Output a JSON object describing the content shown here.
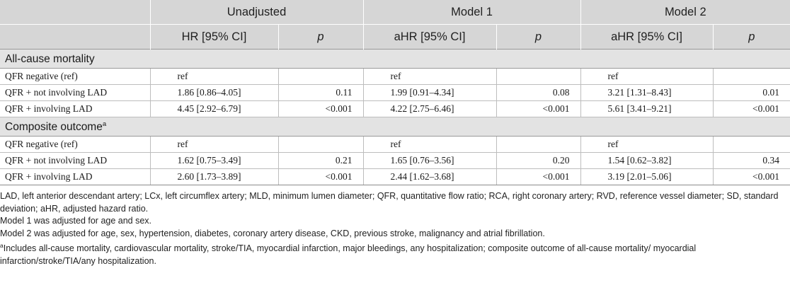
{
  "table": {
    "groups": [
      "Unadjusted",
      "Model 1",
      "Model 2"
    ],
    "subheaders": {
      "unadjusted_ci": "HR [95% CI]",
      "model1_ci": "aHR [95% CI]",
      "model2_ci": "aHR [95% CI]",
      "p": "p"
    },
    "sections": [
      {
        "title": "All-cause mortality",
        "superscript": "",
        "rows": [
          {
            "label": "QFR negative (ref)",
            "u_ci": "ref",
            "u_p": "",
            "m1_ci": "ref",
            "m1_p": "",
            "m2_ci": "ref",
            "m2_p": ""
          },
          {
            "label": "QFR + not involving LAD",
            "u_ci": "1.86 [0.86–4.05]",
            "u_p": "0.11",
            "m1_ci": "1.99 [0.91–4.34]",
            "m1_p": "0.08",
            "m2_ci": "3.21 [1.31–8.43]",
            "m2_p": "0.01"
          },
          {
            "label": "QFR + involving LAD",
            "u_ci": "4.45 [2.92–6.79]",
            "u_p": "<0.001",
            "m1_ci": "4.22 [2.75–6.46]",
            "m1_p": "<0.001",
            "m2_ci": "5.61 [3.41–9.21]",
            "m2_p": "<0.001"
          }
        ]
      },
      {
        "title": "Composite outcome",
        "superscript": "a",
        "rows": [
          {
            "label": "QFR negative (ref)",
            "u_ci": "ref",
            "u_p": "",
            "m1_ci": "ref",
            "m1_p": "",
            "m2_ci": "ref",
            "m2_p": ""
          },
          {
            "label": "QFR + not involving LAD",
            "u_ci": "1.62 [0.75–3.49]",
            "u_p": "0.21",
            "m1_ci": "1.65 [0.76–3.56]",
            "m1_p": "0.20",
            "m2_ci": "1.54 [0.62–3.82]",
            "m2_p": "0.34"
          },
          {
            "label": "QFR + involving LAD",
            "u_ci": "2.60 [1.73–3.89]",
            "u_p": "<0.001",
            "m1_ci": "2.44 [1.62–3.68]",
            "m1_p": "<0.001",
            "m2_ci": "3.19 [2.01–5.06]",
            "m2_p": "<0.001"
          }
        ]
      }
    ]
  },
  "notes": {
    "abbreviations": "LAD, left anterior descendant artery; LCx, left circumflex artery; MLD, minimum lumen diameter; QFR, quantitative flow ratio; RCA, right coronary artery; RVD, reference vessel diameter; SD, standard deviation; aHR, adjusted hazard ratio.",
    "model1": "Model 1 was adjusted for age and sex.",
    "model2": "Model 2 was adjusted for age, sex, hypertension, diabetes, coronary artery disease, CKD, previous stroke, malignancy and atrial fibrillation.",
    "footnote_marker": "a",
    "footnote": "Includes all-cause mortality, cardiovascular mortality, stroke/TIA, myocardial infarction, major bleedings, any hospitalization; composite outcome of all-cause mortality/ myocardial infarction/stroke/TIA/any hospitalization."
  }
}
